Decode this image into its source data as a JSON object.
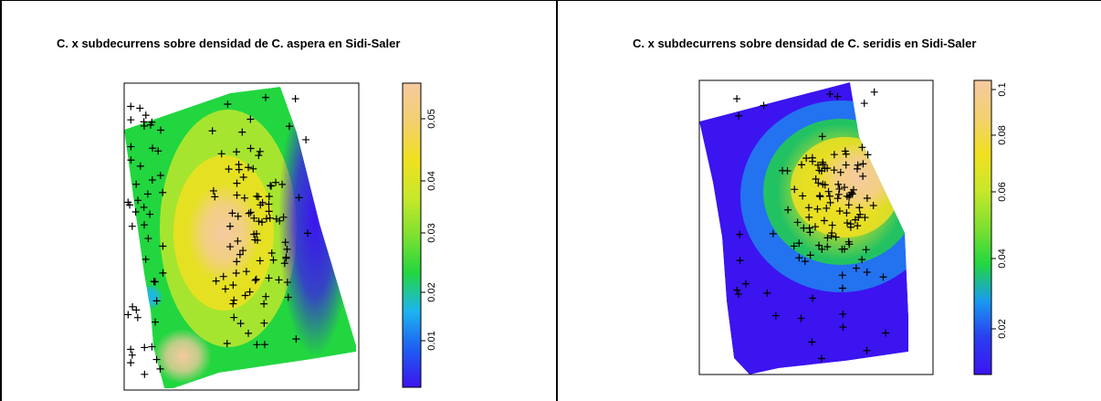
{
  "chart_data": [
    {
      "type": "heatmap",
      "title": "C. x subdecurrens sobre densidad de C. aspera en Sidi-Saler",
      "colorbar": {
        "ticks": [
          0.01,
          0.02,
          0.03,
          0.04,
          0.05
        ],
        "labels": [
          "0.01",
          "0.02",
          "0.03",
          "0.04",
          "0.05"
        ],
        "range": [
          0.002,
          0.056
        ]
      },
      "colormap": [
        "#3b14f0",
        "#1f5df0",
        "#1db4f0",
        "#22d640",
        "#7fe030",
        "#c8e82a",
        "#f0e020",
        "#f2d070",
        "#f5caa0"
      ],
      "hotspots": [
        {
          "label": "center",
          "level": 0.055
        },
        {
          "label": "bottom-left",
          "level": 0.055
        },
        {
          "label": "left-edge",
          "level": 0.018
        },
        {
          "label": "right-edge",
          "level": 0.004
        }
      ],
      "points_marker": "+",
      "grid": false
    },
    {
      "type": "heatmap",
      "title": "C. x subdecurrens sobre densidad de C. seridis en Sidi-Saler",
      "colorbar": {
        "ticks": [
          0.02,
          0.04,
          0.06,
          0.08,
          0.1
        ],
        "labels": [
          "0.02",
          "0.04",
          "0.06",
          "0.08",
          "0.1"
        ],
        "range": [
          0.002,
          0.106
        ]
      },
      "colormap": [
        "#3b14f0",
        "#2a3df0",
        "#1a9af0",
        "#22d640",
        "#7fe030",
        "#c8e82a",
        "#f0e020",
        "#f2d070",
        "#f5caa0"
      ],
      "hotspots": [
        {
          "label": "right-center",
          "level": 0.1
        }
      ],
      "points_marker": "+",
      "grid": false
    }
  ]
}
